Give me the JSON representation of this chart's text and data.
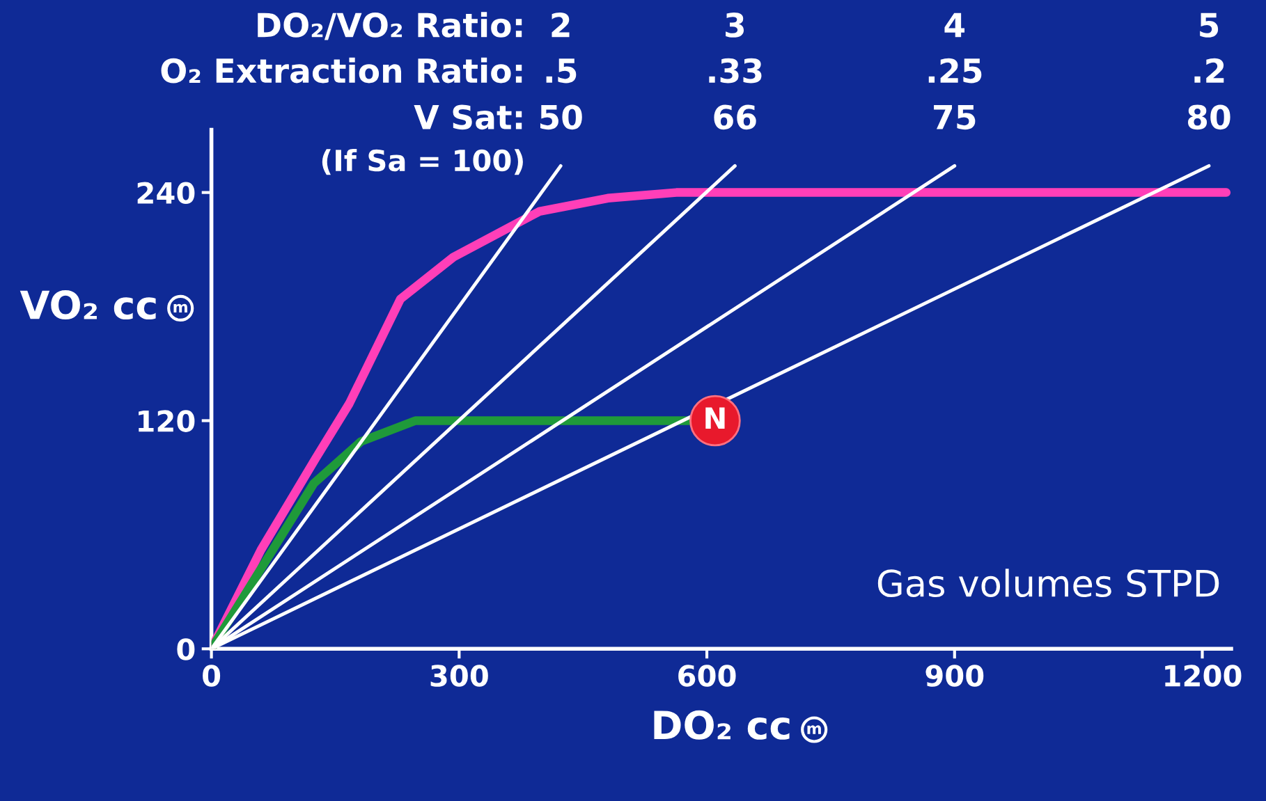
{
  "chart_data": {
    "type": "line",
    "xlabel": "DO₂ cc",
    "ylabel": "VO₂ cc",
    "xlim": [
      0,
      1235
    ],
    "ylim": [
      0,
      273
    ],
    "xticks": [
      0,
      300,
      600,
      900,
      1200
    ],
    "yticks": [
      0,
      120,
      240
    ],
    "grid": false,
    "legend": false,
    "line_style": "solid",
    "series": [
      {
        "type": "line",
        "color": "#ff3fb8",
        "x": [
          0,
          60,
          126,
          167,
          229,
          293,
          397,
          480,
          563,
          1229
        ],
        "values": [
          0,
          52,
          100,
          129,
          184,
          206,
          230,
          237,
          240,
          240
        ]
      },
      {
        "type": "line",
        "color": "#1f9a3a",
        "x": [
          0,
          124,
          181,
          247,
          400,
          581
        ],
        "values": [
          0,
          87,
          109,
          120,
          120,
          120
        ]
      },
      {
        "type": "line",
        "color": "#ffffff",
        "x": [
          0,
          423
        ],
        "values": [
          0,
          254
        ]
      },
      {
        "type": "line",
        "color": "#ffffff",
        "x": [
          0,
          634
        ],
        "values": [
          0,
          254
        ]
      },
      {
        "type": "line",
        "color": "#ffffff",
        "x": [
          0,
          900
        ],
        "values": [
          0,
          254
        ]
      },
      {
        "type": "line",
        "color": "#ffffff",
        "x": [
          0,
          1208
        ],
        "values": [
          0,
          254
        ]
      },
      {
        "type": "scatter",
        "color": "#e8192c",
        "marker": "circle",
        "x": [
          610
        ],
        "values": [
          120
        ],
        "value_labels": [
          "N"
        ]
      }
    ],
    "annotations": [
      "DO₂/VO₂ Ratio:",
      "O₂ Extraction Ratio:",
      "V Sat:",
      "(If Sa = 100)",
      "2",
      ".5",
      "50",
      "3",
      ".33",
      "66",
      "4",
      ".25",
      "75",
      "5",
      ".2",
      "80",
      "Gas volumes STPD"
    ]
  }
}
